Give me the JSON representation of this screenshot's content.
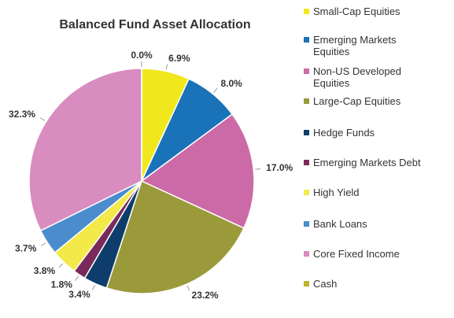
{
  "chart_data": {
    "type": "pie",
    "title": "Balanced Fund Asset Allocation",
    "categories": [
      "Small-Cap Equities",
      "Emerging Markets Equities",
      "Non-US Developed Equities",
      "Large-Cap Equities",
      "Hedge Funds",
      "Emerging Markets Debt",
      "High Yield",
      "Bank Loans",
      "Core Fixed Income",
      "Cash"
    ],
    "values": [
      6.9,
      8.0,
      17.0,
      23.2,
      3.4,
      1.8,
      3.8,
      3.7,
      32.3,
      0.0
    ],
    "value_labels": [
      "6.9%",
      "8.0%",
      "17.0%",
      "23.2%",
      "3.4%",
      "1.8%",
      "3.8%",
      "3.7%",
      "32.3%",
      "0.0%"
    ],
    "colors": [
      "#f0e81c",
      "#1a72b8",
      "#cc6aa8",
      "#9a9a3a",
      "#0e3d6b",
      "#7a2a5a",
      "#f3ea4a",
      "#4a8ccc",
      "#d98cbf",
      "#b8b82a"
    ],
    "legend": "right"
  }
}
